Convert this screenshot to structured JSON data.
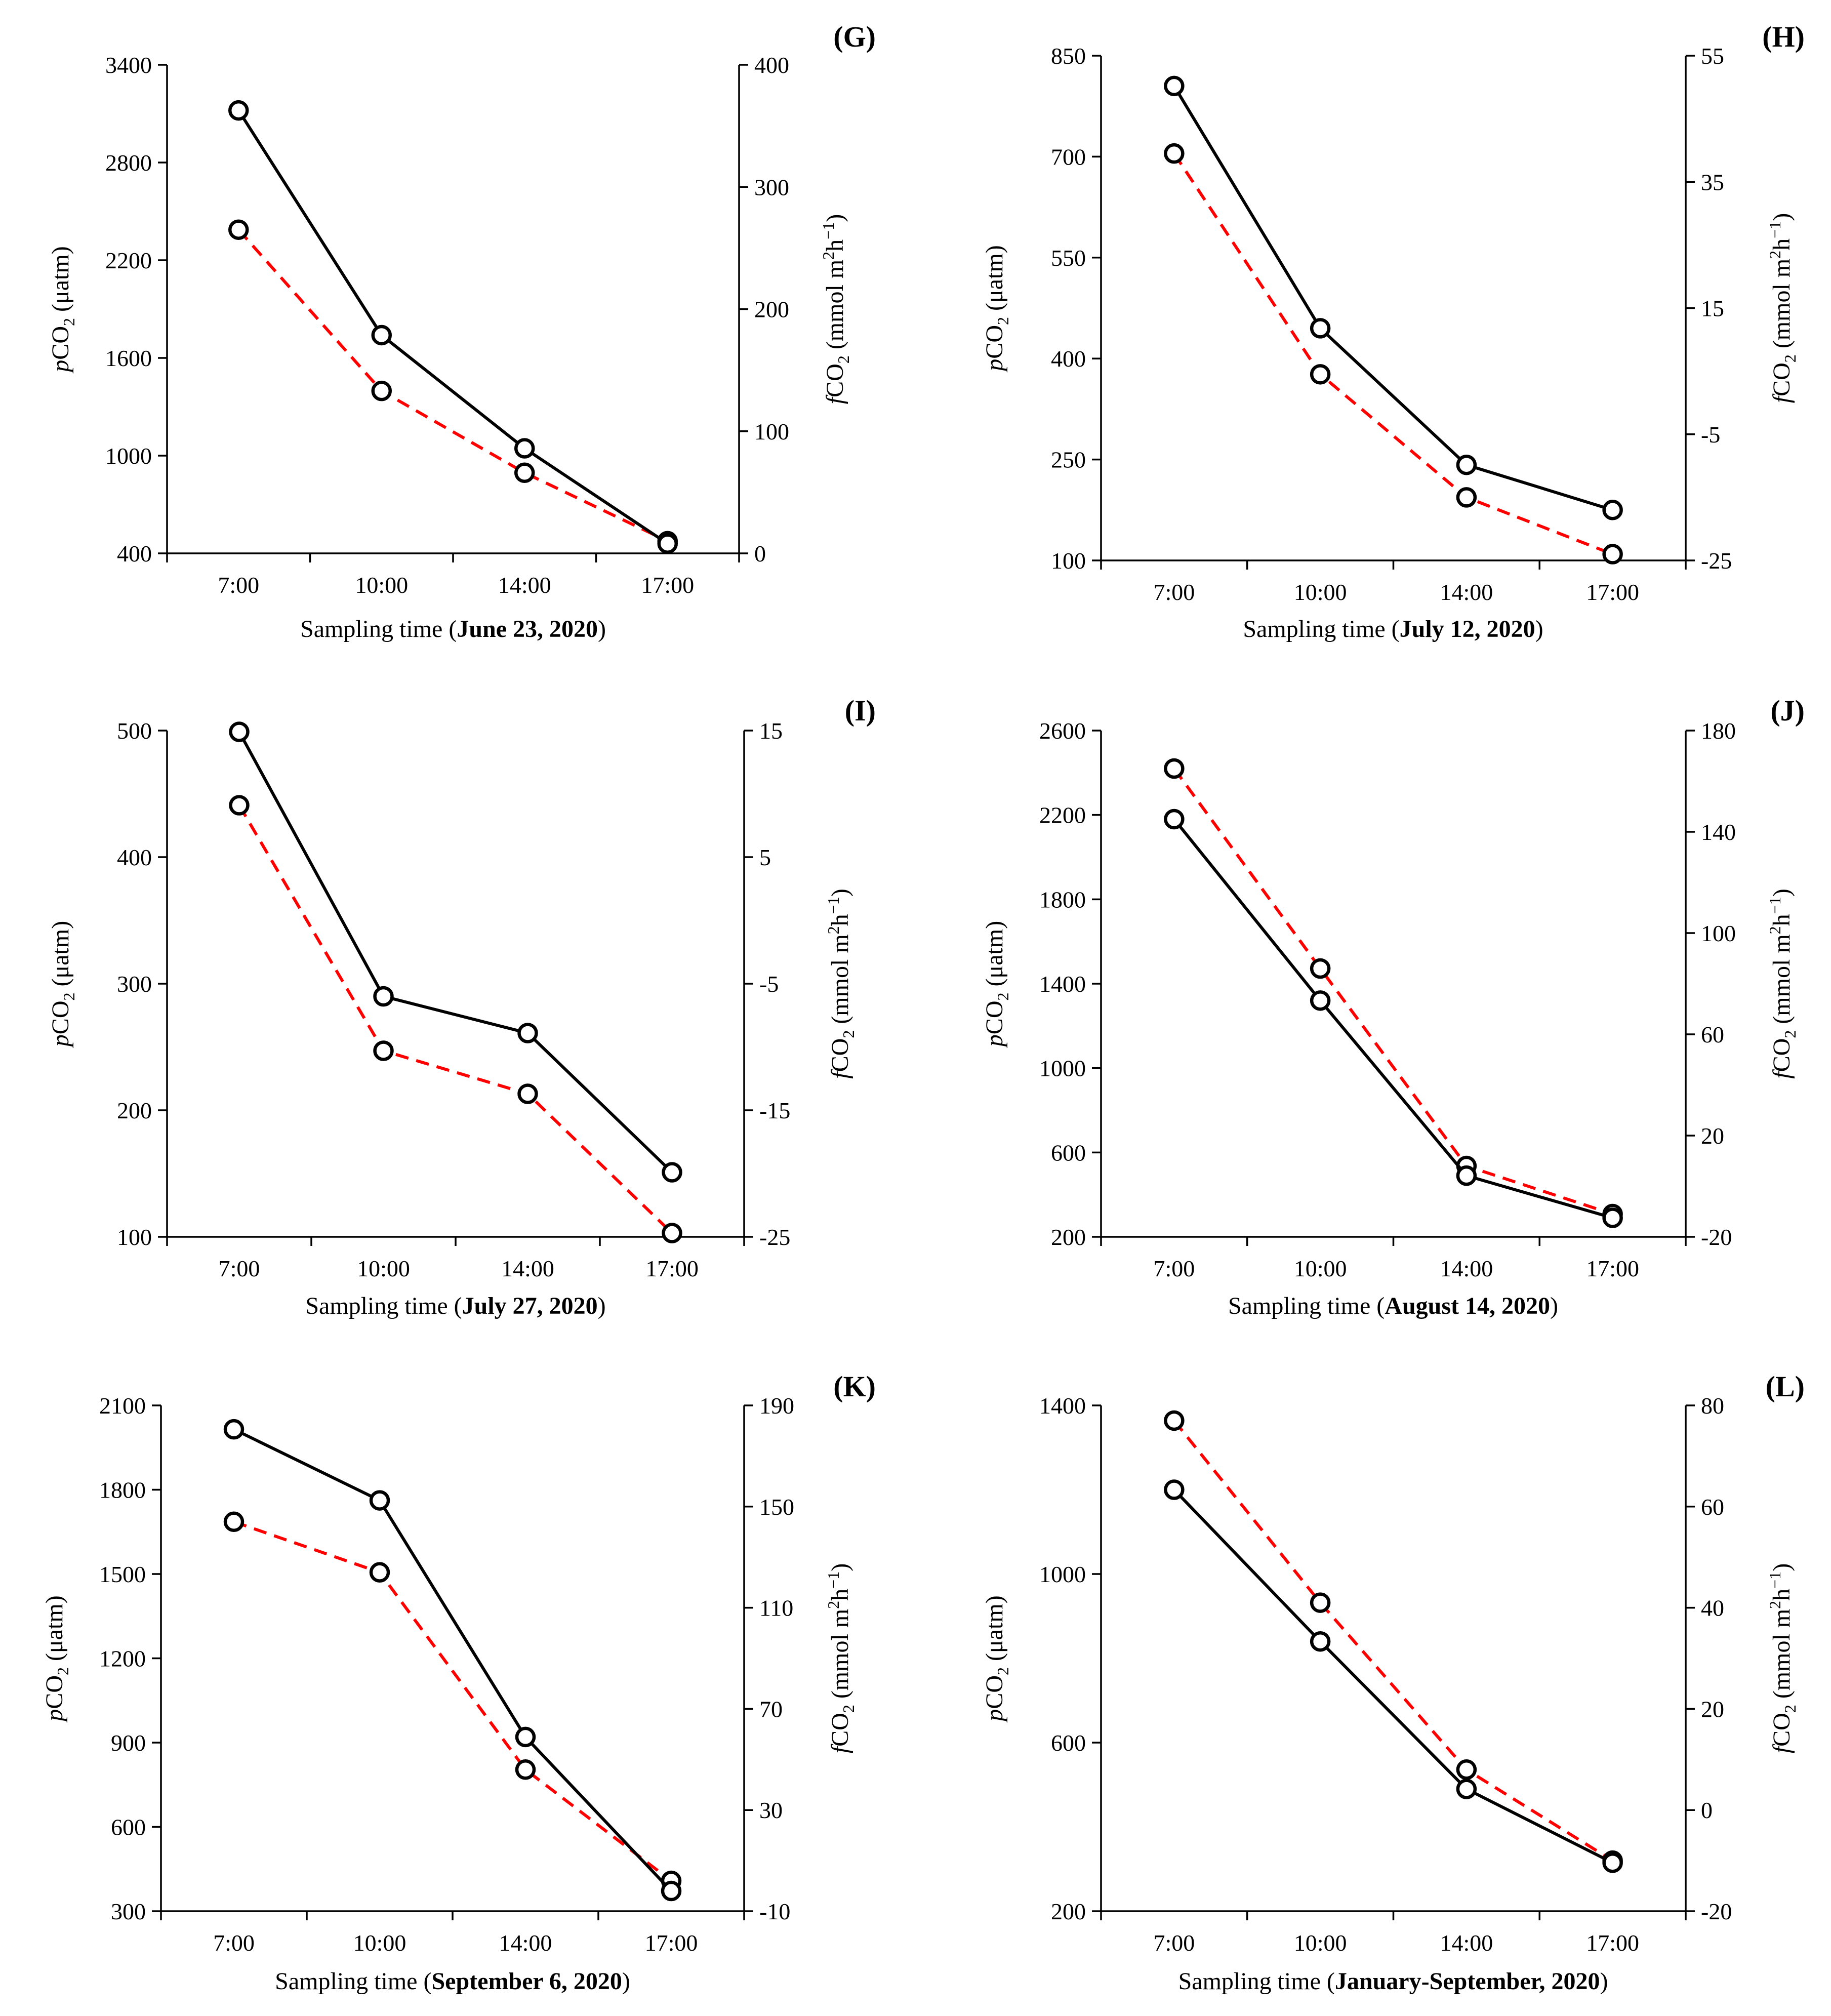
{
  "chart_data": [
    {
      "type": "line",
      "panel": "(G)",
      "date": "June 23, 2020",
      "categories": [
        "7:00",
        "10:00",
        "14:00",
        "17:00"
      ],
      "xlabel_prefix": "Sampling time (",
      "xlabel_suffix": ")",
      "left_axis": {
        "label_italic": "p",
        "label_main": "CO",
        "label_sub": "2",
        "label_rest": " (μatm)",
        "ylim": [
          400,
          3400
        ],
        "ticks": [
          400,
          1000,
          1600,
          2200,
          2800,
          3400
        ]
      },
      "right_axis": {
        "label_italic": "f",
        "label_main": "CO",
        "label_sub": "2",
        "label_rest": " (mmol m",
        "label_sup1": "2",
        "label_mid": "h",
        "label_sup2": "−1",
        "label_end": ")",
        "ylim": [
          0,
          400
        ],
        "ticks": [
          0,
          100,
          200,
          300,
          400
        ]
      },
      "series": [
        {
          "name": "pCO2",
          "axis": "left",
          "color": "#000000",
          "style": "solid",
          "values": [
            3120,
            1740,
            1045,
            460
          ]
        },
        {
          "name": "fCO2",
          "axis": "right",
          "color": "#ff0000",
          "style": "dashed",
          "values": [
            265,
            133,
            66,
            10
          ]
        }
      ]
    },
    {
      "type": "line",
      "panel": "(H)",
      "date": "July 12, 2020",
      "categories": [
        "7:00",
        "10:00",
        "14:00",
        "17:00"
      ],
      "xlabel_prefix": "Sampling time (",
      "xlabel_suffix": ")",
      "left_axis": {
        "label_italic": "p",
        "label_main": "CO",
        "label_sub": "2",
        "label_rest": " (μatm)",
        "ylim": [
          100,
          850
        ],
        "ticks": [
          100,
          250,
          400,
          550,
          700,
          850
        ]
      },
      "right_axis": {
        "label_italic": "f",
        "label_main": "CO",
        "label_sub": "2",
        "label_rest": " (mmol m",
        "label_sup1": "2",
        "label_mid": "h",
        "label_sup2": "−1",
        "label_end": ")",
        "ylim": [
          -25,
          55
        ],
        "ticks": [
          -25,
          -5,
          15,
          35,
          55
        ]
      },
      "series": [
        {
          "name": "pCO2",
          "axis": "left",
          "color": "#000000",
          "style": "solid",
          "values": [
            805,
            445,
            242,
            175
          ]
        },
        {
          "name": "fCO2",
          "axis": "right",
          "color": "#ff0000",
          "style": "dashed",
          "values": [
            39.5,
            4.5,
            -15,
            -24
          ]
        }
      ]
    },
    {
      "type": "line",
      "panel": "(I)",
      "date": "July 27, 2020",
      "categories": [
        "7:00",
        "10:00",
        "14:00",
        "17:00"
      ],
      "xlabel_prefix": "Sampling time (",
      "xlabel_suffix": ")",
      "left_axis": {
        "label_italic": "p",
        "label_main": "CO",
        "label_sub": "2",
        "label_rest": " (μatm)",
        "ylim": [
          100,
          500
        ],
        "ticks": [
          100,
          200,
          300,
          400,
          500
        ]
      },
      "right_axis": {
        "label_italic": "f",
        "label_main": "CO",
        "label_sub": "2",
        "label_rest": " (mmol m",
        "label_sup1": "2",
        "label_mid": "h",
        "label_sup2": "−1",
        "label_end": ")",
        "ylim": [
          -25,
          15
        ],
        "ticks": [
          -25,
          -15,
          -5,
          5,
          15
        ]
      },
      "series": [
        {
          "name": "pCO2",
          "axis": "left",
          "color": "#000000",
          "style": "solid",
          "values": [
            499,
            290,
            261,
            151
          ]
        },
        {
          "name": "fCO2",
          "axis": "right",
          "color": "#ff0000",
          "style": "dashed",
          "values": [
            9.1,
            -10.3,
            -13.7,
            -24.7
          ]
        }
      ]
    },
    {
      "type": "line",
      "panel": "(J)",
      "date": "August 14, 2020",
      "categories": [
        "7:00",
        "10:00",
        "14:00",
        "17:00"
      ],
      "xlabel_prefix": "Sampling time (",
      "xlabel_suffix": ")",
      "left_axis": {
        "label_italic": "p",
        "label_main": "CO",
        "label_sub": "2",
        "label_rest": " (μatm)",
        "ylim": [
          200,
          2600
        ],
        "ticks": [
          200,
          600,
          1000,
          1400,
          1800,
          2200,
          2600
        ]
      },
      "right_axis": {
        "label_italic": "f",
        "label_main": "CO",
        "label_sub": "2",
        "label_rest": " (mmol m",
        "label_sup1": "2",
        "label_mid": "h",
        "label_sup2": "−1",
        "label_end": ")",
        "ylim": [
          -20,
          180
        ],
        "ticks": [
          -20,
          20,
          60,
          100,
          140,
          180
        ]
      },
      "series": [
        {
          "name": "pCO2",
          "axis": "left",
          "color": "#000000",
          "style": "solid",
          "values": [
            2180,
            1320,
            490,
            290
          ]
        },
        {
          "name": "fCO2",
          "axis": "right",
          "color": "#ff0000",
          "style": "dashed",
          "values": [
            165,
            86,
            8,
            -11
          ]
        }
      ]
    },
    {
      "type": "line",
      "panel": "(K)",
      "date": "September 6, 2020",
      "categories": [
        "7:00",
        "10:00",
        "14:00",
        "17:00"
      ],
      "xlabel_prefix": "Sampling time (",
      "xlabel_suffix": ")",
      "left_axis": {
        "label_italic": "p",
        "label_main": "CO",
        "label_sub": "2",
        "label_rest": " (μatm)",
        "ylim": [
          300,
          2100
        ],
        "ticks": [
          300,
          600,
          900,
          1200,
          1500,
          1800,
          2100
        ]
      },
      "right_axis": {
        "label_italic": "f",
        "label_main": "CO",
        "label_sub": "2",
        "label_rest": " (mmol m",
        "label_sup1": "2",
        "label_mid": "h",
        "label_sup2": "−1",
        "label_end": ")",
        "ylim": [
          -10,
          190
        ],
        "ticks": [
          -10,
          30,
          70,
          110,
          150,
          190
        ]
      },
      "series": [
        {
          "name": "pCO2",
          "axis": "left",
          "color": "#000000",
          "style": "solid",
          "values": [
            2015,
            1762,
            920,
            372
          ]
        },
        {
          "name": "fCO2",
          "axis": "right",
          "color": "#ff0000",
          "style": "dashed",
          "values": [
            144,
            124,
            46,
            2
          ]
        }
      ]
    },
    {
      "type": "line",
      "panel": "(L)",
      "date": "January-September, 2020",
      "categories": [
        "7:00",
        "10:00",
        "14:00",
        "17:00"
      ],
      "xlabel_prefix": "Sampling time (",
      "xlabel_suffix": ")",
      "left_axis": {
        "label_italic": "p",
        "label_main": "CO",
        "label_sub": "2",
        "label_rest": " (μatm)",
        "ylim": [
          200,
          1400
        ],
        "ticks": [
          200,
          600,
          1000,
          1400
        ]
      },
      "right_axis": {
        "label_italic": "f",
        "label_main": "CO",
        "label_sub": "2",
        "label_rest": " (mmol m",
        "label_sup1": "2",
        "label_mid": "h",
        "label_sup2": "−1",
        "label_end": ")",
        "ylim": [
          -20,
          80
        ],
        "ticks": [
          -20,
          0,
          20,
          40,
          60,
          80
        ]
      },
      "series": [
        {
          "name": "pCO2",
          "axis": "left",
          "color": "#000000",
          "style": "solid",
          "values": [
            1200,
            840,
            490,
            315
          ]
        },
        {
          "name": "fCO2",
          "axis": "right",
          "color": "#ff0000",
          "style": "dashed",
          "values": [
            77,
            41,
            8,
            -10
          ]
        }
      ]
    }
  ]
}
